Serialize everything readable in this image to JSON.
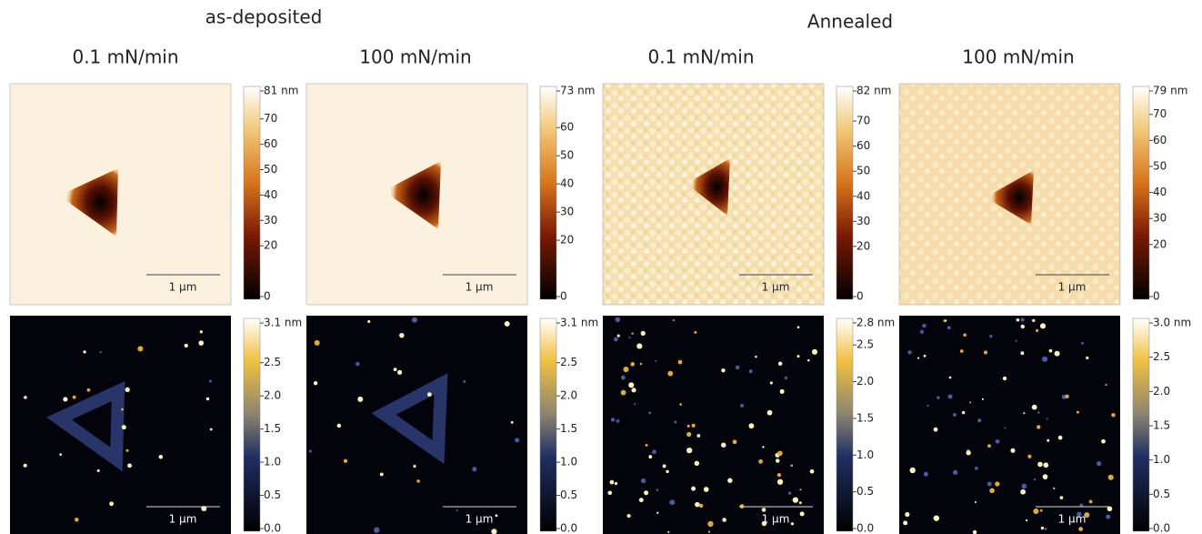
{
  "headers": {
    "group_1": "as-deposited",
    "group_2": "Annealed"
  },
  "columns": [
    {
      "title": "0.1 mN/min",
      "panels": [
        {
          "colorbar": {
            "max": {
              "value": 81,
              "label": "81 nm"
            },
            "ticks": [
              70,
              60,
              50,
              40,
              30,
              20,
              0
            ]
          },
          "scale_bar": "1 μm"
        },
        {
          "colorbar": {
            "max": {
              "value": 3.1,
              "label": "3.1 nm"
            },
            "ticks": [
              2.5,
              {
                "value": 2,
                "label": "2.0"
              },
              1.5,
              {
                "value": 1,
                "label": "1.0"
              },
              0.5,
              {
                "value": 0,
                "label": "0.0"
              }
            ]
          },
          "scale_bar": "1 μm"
        }
      ]
    },
    {
      "title": "100 mN/min",
      "panels": [
        {
          "colorbar": {
            "max": {
              "value": 73,
              "label": "73 nm"
            },
            "ticks": [
              60,
              50,
              40,
              30,
              20,
              0
            ]
          },
          "scale_bar": "1 μm"
        },
        {
          "colorbar": {
            "max": {
              "value": 3.1,
              "label": "3.1 nm"
            },
            "ticks": [
              2.5,
              {
                "value": 2,
                "label": "2.0"
              },
              1.5,
              {
                "value": 1,
                "label": "1.0"
              },
              0.5,
              {
                "value": 0,
                "label": "0.0"
              }
            ]
          },
          "scale_bar": "1 μm"
        }
      ]
    },
    {
      "title": "0.1 mN/min",
      "panels": [
        {
          "colorbar": {
            "max": {
              "value": 82,
              "label": "82 nm"
            },
            "ticks": [
              70,
              60,
              50,
              40,
              30,
              20,
              0
            ]
          },
          "scale_bar": "1 μm"
        },
        {
          "colorbar": {
            "max": {
              "value": 2.8,
              "label": "2.8 nm"
            },
            "ticks": [
              2.5,
              {
                "value": 2,
                "label": "2.0"
              },
              1.5,
              {
                "value": 1,
                "label": "1.0"
              },
              0.5,
              {
                "value": 0,
                "label": "0.0"
              }
            ]
          },
          "scale_bar": "1 μm"
        }
      ]
    },
    {
      "title": "100 mN/min",
      "panels": [
        {
          "colorbar": {
            "max": {
              "value": 79,
              "label": "79 nm"
            },
            "ticks": [
              70,
              60,
              50,
              40,
              30,
              20,
              0
            ]
          },
          "scale_bar": "1 μm"
        },
        {
          "colorbar": {
            "max": {
              "value": 3,
              "label": "3.0 nm"
            },
            "ticks": [
              2.5,
              {
                "value": 2,
                "label": "2.0"
              },
              1.5,
              {
                "value": 1,
                "label": "1.0"
              },
              0.5,
              {
                "value": 0,
                "label": "0.0"
              }
            ]
          },
          "scale_bar": "1 μm"
        }
      ]
    }
  ]
}
